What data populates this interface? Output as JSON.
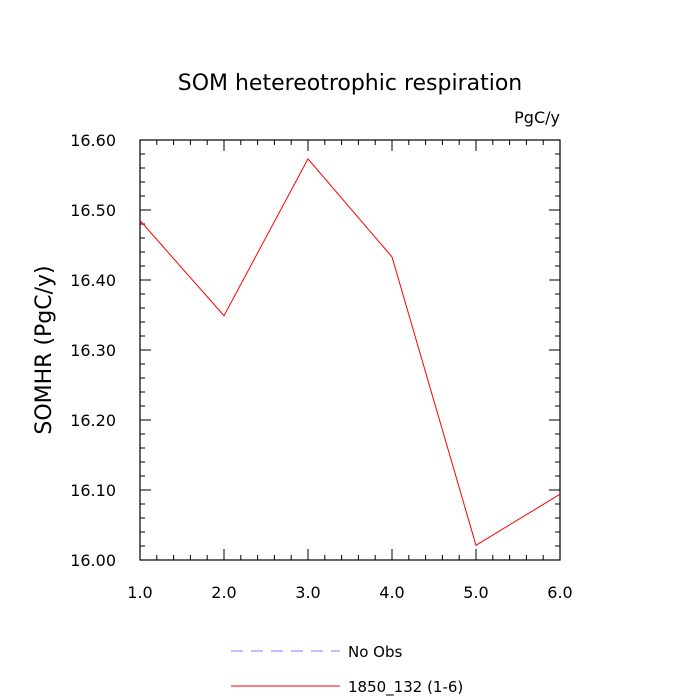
{
  "chart_data": {
    "type": "line",
    "title": "SOM hetereotrophic respiration",
    "units_label": "PgC/y",
    "ylabel": "SOMHR  (PgC/y)",
    "xlabel": "",
    "xlim": [
      1.0,
      6.0
    ],
    "ylim": [
      16.0,
      16.6
    ],
    "x_ticks": [
      1.0,
      2.0,
      3.0,
      4.0,
      5.0,
      6.0
    ],
    "x_tick_labels": [
      "1.0",
      "2.0",
      "3.0",
      "4.0",
      "5.0",
      "6.0"
    ],
    "y_ticks": [
      16.0,
      16.1,
      16.2,
      16.3,
      16.4,
      16.5,
      16.6
    ],
    "y_tick_labels": [
      "16.00",
      "16.10",
      "16.20",
      "16.30",
      "16.40",
      "16.50",
      "16.60"
    ],
    "grid": false,
    "legend_position": "bottom",
    "series": [
      {
        "name": "1850_132 (1-6)",
        "color": "#ff0000",
        "style": "solid",
        "x": [
          1.0,
          2.0,
          3.0,
          4.0,
          5.0,
          6.0
        ],
        "y": [
          16.485,
          16.349,
          16.573,
          16.433,
          16.021,
          16.094
        ]
      }
    ],
    "legend": [
      {
        "label": "No Obs",
        "color": "#8080ff",
        "style": "dashed"
      },
      {
        "label": "1850_132 (1-6)",
        "color": "#ff0000",
        "style": "solid"
      }
    ]
  }
}
